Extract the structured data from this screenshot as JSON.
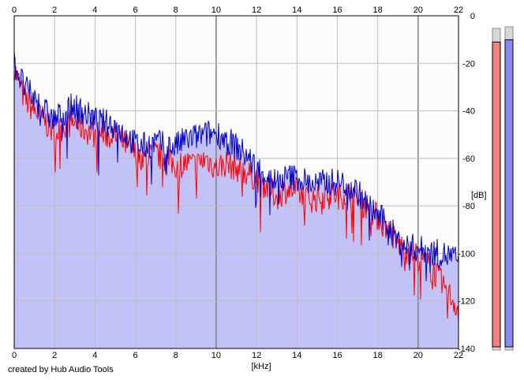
{
  "app": {
    "footer_text": "created by Hub Audio Tools"
  },
  "colors": {
    "plot_background": "#fcfcfc",
    "fill_area": "#c2c2f8",
    "grid": "#bdbdbd",
    "grid_major": "#7f7f7f",
    "left_channel": "#ff0000",
    "right_channel": "#0000cc",
    "meter_left_fill": "#f08080",
    "meter_right_fill": "#8a8af0"
  },
  "chart_data": {
    "type": "line",
    "title": "",
    "xlabel": "[kHz]",
    "ylabel": "[dB]",
    "xlim": [
      0,
      22
    ],
    "ylim": [
      -140,
      0
    ],
    "x_ticks": [
      "0",
      "2",
      "4",
      "6",
      "8",
      "10",
      "12",
      "14",
      "16",
      "18",
      "20",
      "22"
    ],
    "y_ticks": [
      "0",
      "-20",
      "-40",
      "-60",
      "-80",
      "-100",
      "-120",
      "-140"
    ],
    "grid": true,
    "series": [
      {
        "color": "#ff0000",
        "x": [
          0,
          0.5,
          1,
          1.5,
          2,
          2.5,
          3,
          3.5,
          4,
          4.5,
          5,
          5.5,
          6,
          6.5,
          7,
          7.5,
          8,
          8.5,
          9,
          9.5,
          10,
          10.5,
          11,
          11.5,
          12,
          12.5,
          13,
          13.5,
          14,
          14.5,
          15,
          15.5,
          16,
          16.5,
          17,
          17.5,
          18,
          18.5,
          19,
          19.5,
          20,
          20.5,
          21,
          21.5,
          22
        ],
        "values": [
          -22,
          -35,
          -40,
          -44,
          -50,
          -46,
          -45,
          -48,
          -50,
          -50,
          -51,
          -54,
          -58,
          -60,
          -58,
          -61,
          -63,
          -62,
          -63,
          -60,
          -64,
          -62,
          -64,
          -66,
          -68,
          -72,
          -76,
          -73,
          -74,
          -77,
          -77,
          -75,
          -76,
          -75,
          -78,
          -80,
          -85,
          -90,
          -96,
          -99,
          -101,
          -105,
          -110,
          -117,
          -123
        ]
      },
      {
        "color": "#0000cc",
        "x": [
          0,
          0.5,
          1,
          1.5,
          2,
          2.5,
          3,
          3.5,
          4,
          4.5,
          5,
          5.5,
          6,
          6.5,
          7,
          7.5,
          8,
          8.5,
          9,
          9.5,
          10,
          10.5,
          11,
          11.5,
          12,
          12.5,
          13,
          13.5,
          14,
          14.5,
          15,
          15.5,
          16,
          16.5,
          17,
          17.5,
          18,
          18.5,
          19,
          19.5,
          20,
          20.5,
          21,
          21.5,
          22
        ],
        "values": [
          -20,
          -30,
          -35,
          -40,
          -44,
          -40,
          -38,
          -41,
          -44,
          -45,
          -46,
          -50,
          -54,
          -55,
          -53,
          -55,
          -55,
          -52,
          -51,
          -50,
          -49,
          -52,
          -55,
          -59,
          -64,
          -67,
          -70,
          -68,
          -68,
          -70,
          -71,
          -70,
          -70,
          -71,
          -74,
          -80,
          -84,
          -88,
          -95,
          -97,
          -98,
          -99,
          -100,
          -101,
          -103
        ]
      }
    ]
  },
  "meters": {
    "left_level_db": -6,
    "right_level_db": -5
  }
}
